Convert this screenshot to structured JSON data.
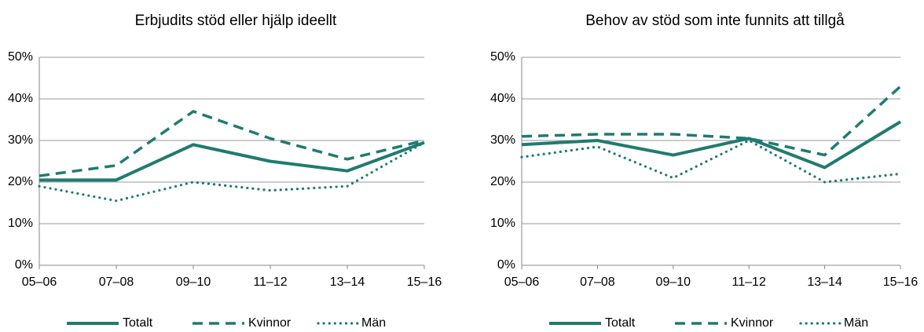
{
  "chart_data": [
    {
      "type": "line",
      "title": "Erbjudits stöd eller hjälp ideellt",
      "categories": [
        "05–06",
        "07–08",
        "09–10",
        "11–12",
        "13–14",
        "15–16"
      ],
      "series": [
        {
          "name": "Totalt",
          "color": "#1f7b70",
          "dash": "solid",
          "values": [
            20.5,
            20.5,
            29,
            25,
            22.7,
            29.5
          ]
        },
        {
          "name": "Kvinnor",
          "color": "#1f7b70",
          "dash": "dashed",
          "values": [
            21.5,
            24,
            37,
            30.5,
            25.5,
            30
          ]
        },
        {
          "name": "Män",
          "color": "#1f7b70",
          "dash": "dotted",
          "values": [
            19,
            15.5,
            20,
            18,
            19,
            29.5
          ]
        }
      ],
      "ylim": [
        0,
        50
      ],
      "yticks": [
        {
          "value": 0,
          "label": "0%"
        },
        {
          "value": 10,
          "label": "10%"
        },
        {
          "value": 20,
          "label": "20%"
        },
        {
          "value": 30,
          "label": "30%"
        },
        {
          "value": 40,
          "label": "40%"
        },
        {
          "value": 50,
          "label": "50%"
        }
      ],
      "grid": true,
      "legend": "bottom"
    },
    {
      "type": "line",
      "title": "Behov av stöd som inte funnits att tillgå",
      "categories": [
        "05–06",
        "07–08",
        "09–10",
        "11–12",
        "13–14",
        "15–16"
      ],
      "series": [
        {
          "name": "Totalt",
          "color": "#1f7b70",
          "dash": "solid",
          "values": [
            29,
            30,
            26.5,
            30.5,
            23.5,
            34.5
          ]
        },
        {
          "name": "Kvinnor",
          "color": "#1f7b70",
          "dash": "dashed",
          "values": [
            31,
            31.5,
            31.5,
            30.5,
            26.5,
            43
          ]
        },
        {
          "name": "Män",
          "color": "#1f7b70",
          "dash": "dotted",
          "values": [
            26,
            28.5,
            21,
            30,
            20,
            22
          ]
        }
      ],
      "ylim": [
        0,
        50
      ],
      "yticks": [
        {
          "value": 0,
          "label": "0%"
        },
        {
          "value": 10,
          "label": "10%"
        },
        {
          "value": 20,
          "label": "20%"
        },
        {
          "value": 30,
          "label": "30%"
        },
        {
          "value": 40,
          "label": "40%"
        },
        {
          "value": 50,
          "label": "50%"
        }
      ],
      "grid": true,
      "legend": "bottom"
    }
  ]
}
